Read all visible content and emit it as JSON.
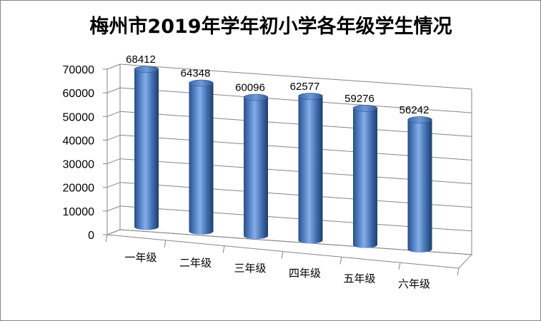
{
  "chart_data": {
    "type": "bar",
    "title": "梅州市2019年学年初小学各年级学生情况",
    "categories": [
      "一年级",
      "二年级",
      "三年级",
      "四年级",
      "五年级",
      "六年级"
    ],
    "values": [
      68412,
      64348,
      60096,
      62577,
      59276,
      56242
    ],
    "ylim": [
      0,
      70000
    ],
    "yticks": [
      "0",
      "10000",
      "20000",
      "30000",
      "40000",
      "50000",
      "60000",
      "70000"
    ],
    "grid": true,
    "legend": "none",
    "style": "3d-cylinder",
    "colors": {
      "bar": "#4f81bd",
      "grid": "#868686",
      "border": "#868686"
    }
  }
}
